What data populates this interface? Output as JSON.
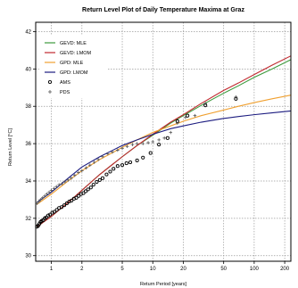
{
  "chart_data": {
    "type": "line",
    "title": "Return Level Plot of Daily Temperature Maxima at Graz",
    "xlabel": "Return Period [years]",
    "ylabel": "Return Level [°C]",
    "x_scale": "log",
    "xlim": [
      0.7,
      230
    ],
    "ylim": [
      29.7,
      42.5
    ],
    "x_ticks": [
      1,
      2,
      5,
      10,
      20,
      50,
      100,
      200
    ],
    "x_tick_labels": [
      "1",
      "2",
      "5",
      "10",
      "20",
      "50",
      "100",
      "200"
    ],
    "y_ticks": [
      30,
      32,
      34,
      36,
      38,
      40,
      42
    ],
    "y_tick_labels": [
      "30",
      "32",
      "34",
      "36",
      "38",
      "40",
      "42"
    ],
    "grid": true,
    "legend_position": "top-left",
    "legend": [
      {
        "label": "GEVD: MLE",
        "kind": "line",
        "color": "#3c9a3c"
      },
      {
        "label": "GEVD: LMOM",
        "kind": "line",
        "color": "#c0282e"
      },
      {
        "label": "GPD: MLE",
        "kind": "line",
        "color": "#f0a030"
      },
      {
        "label": "GPD: LMOM",
        "kind": "line",
        "color": "#1c1c80"
      },
      {
        "label": "AMS",
        "kind": "circle",
        "color": "#000000"
      },
      {
        "label": "PDS",
        "kind": "plus",
        "color": "#555555"
      }
    ],
    "series": [
      {
        "name": "GEVD: MLE",
        "color": "#3c9a3c",
        "x": [
          0.72,
          1,
          1.5,
          2,
          3,
          5,
          7,
          10,
          15,
          20,
          30,
          50,
          70,
          100,
          150,
          230
        ],
        "y": [
          31.55,
          32.1,
          32.9,
          33.5,
          34.35,
          35.3,
          35.9,
          36.45,
          37.1,
          37.5,
          38.05,
          38.7,
          39.1,
          39.55,
          40.0,
          40.5
        ]
      },
      {
        "name": "GEVD: LMOM",
        "color": "#c0282e",
        "x": [
          0.72,
          1,
          1.5,
          2,
          3,
          5,
          7,
          10,
          15,
          20,
          30,
          50,
          70,
          100,
          150,
          230
        ],
        "y": [
          31.55,
          32.1,
          32.9,
          33.5,
          34.35,
          35.3,
          35.9,
          36.5,
          37.15,
          37.55,
          38.15,
          38.85,
          39.25,
          39.7,
          40.2,
          40.7
        ]
      },
      {
        "name": "GPD: MLE",
        "color": "#f0a030",
        "x": [
          0.72,
          1,
          1.5,
          2,
          3,
          5,
          7,
          10,
          15,
          20,
          30,
          50,
          70,
          100,
          150,
          230
        ],
        "y": [
          32.75,
          33.3,
          34.05,
          34.55,
          35.15,
          35.8,
          36.2,
          36.6,
          36.95,
          37.2,
          37.5,
          37.8,
          38.0,
          38.2,
          38.4,
          38.6
        ]
      },
      {
        "name": "GPD: LMOM",
        "color": "#1c1c80",
        "x": [
          0.72,
          1,
          1.5,
          2,
          3,
          5,
          7,
          10,
          15,
          20,
          30,
          50,
          70,
          100,
          150,
          230
        ],
        "y": [
          32.85,
          33.4,
          34.2,
          34.75,
          35.3,
          35.9,
          36.2,
          36.5,
          36.8,
          36.95,
          37.15,
          37.35,
          37.45,
          37.55,
          37.65,
          37.75
        ]
      }
    ],
    "points": [
      {
        "name": "AMS",
        "marker": "circle",
        "color": "#000000",
        "x": [
          0.72,
          0.74,
          0.76,
          0.78,
          0.8,
          0.83,
          0.86,
          0.89,
          0.93,
          0.97,
          1.02,
          1.07,
          1.13,
          1.19,
          1.26,
          1.34,
          1.42,
          1.5,
          1.58,
          1.67,
          1.76,
          1.86,
          1.96,
          2.07,
          2.18,
          2.3,
          2.45,
          2.6,
          2.8,
          3.0,
          3.2,
          3.5,
          3.8,
          4.1,
          4.5,
          5.0,
          5.5,
          6.0,
          7.0,
          8.0,
          9.5,
          11.5,
          14.0,
          17.5,
          22.0,
          33.0,
          66.0
        ],
        "y": [
          31.55,
          31.6,
          31.7,
          31.8,
          31.85,
          31.9,
          32.0,
          32.05,
          32.15,
          32.2,
          32.3,
          32.35,
          32.45,
          32.55,
          32.6,
          32.7,
          32.8,
          32.9,
          32.95,
          33.05,
          33.1,
          33.2,
          33.3,
          33.35,
          33.45,
          33.55,
          33.65,
          33.8,
          33.95,
          34.05,
          34.15,
          34.35,
          34.5,
          34.65,
          34.8,
          34.85,
          34.95,
          35.0,
          35.1,
          35.25,
          35.5,
          35.95,
          36.3,
          37.2,
          37.5,
          38.05,
          38.4
        ]
      },
      {
        "name": "PDS",
        "marker": "plus",
        "color": "#555555",
        "x": [
          0.72,
          0.75,
          0.78,
          0.82,
          0.86,
          0.9,
          0.95,
          1.0,
          1.06,
          1.12,
          1.19,
          1.27,
          1.36,
          1.46,
          1.57,
          1.7,
          1.85,
          2.0,
          2.2,
          2.4,
          2.65,
          2.9,
          3.2,
          3.6,
          4.0,
          4.5,
          5.0,
          5.6,
          6.3,
          7.0,
          8.0,
          9.0,
          10.0,
          11.5,
          13.0,
          15.0,
          17.5,
          21.0,
          26.0,
          33.0,
          66.0
        ],
        "y": [
          32.8,
          32.9,
          33.0,
          33.1,
          33.2,
          33.3,
          33.4,
          33.5,
          33.6,
          33.7,
          33.8,
          33.85,
          33.95,
          34.05,
          34.15,
          34.3,
          34.45,
          34.55,
          34.7,
          34.85,
          35.0,
          35.15,
          35.3,
          35.45,
          35.55,
          35.65,
          35.75,
          35.85,
          35.95,
          36.0,
          36.0,
          36.05,
          36.1,
          36.2,
          36.3,
          36.6,
          37.1,
          37.4,
          37.5,
          38.15,
          38.5
        ]
      }
    ]
  }
}
